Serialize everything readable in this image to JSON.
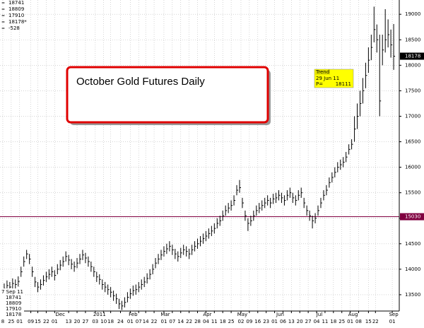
{
  "chart_data": {
    "type": "ohlc",
    "title": "October Gold Futures Daily",
    "header": {
      "open": 18741,
      "high": 18809,
      "low": 17910,
      "close": {
        "value": 18178,
        "label": "18178*"
      },
      "change": -528
    },
    "last_bar": {
      "date": "7 Sep 11",
      "open": 18741,
      "high": 18809,
      "low": 17910,
      "close": 18178
    },
    "trend": {
      "title": "Trend",
      "date": "29 Jun 11",
      "price_prefix": "P=",
      "price": 18111
    },
    "hline": 15030,
    "color": "#000000",
    "hline_color": "#800040",
    "grid": true,
    "ylim": [
      13180,
      19280
    ],
    "yticks": [
      13500,
      14000,
      14500,
      15000,
      15500,
      16000,
      16500,
      17000,
      17500,
      18000,
      18500,
      19000
    ],
    "xlim": [
      -1.5,
      141
    ],
    "xticks": [
      {
        "value": -0.5,
        "label": "8"
      },
      {
        "value": 2.5,
        "label": "25"
      },
      {
        "value": 5.5,
        "label": "01"
      },
      {
        "value": 9.5,
        "label": "09"
      },
      {
        "value": 12,
        "label": "15"
      },
      {
        "value": 15,
        "label": "22"
      },
      {
        "value": 18,
        "label": "01"
      },
      {
        "value": 23,
        "label": "13"
      },
      {
        "value": 26,
        "label": "20"
      },
      {
        "value": 29,
        "label": "27"
      },
      {
        "value": 32.5,
        "label": "03"
      },
      {
        "value": 35.5,
        "label": "10"
      },
      {
        "value": 38,
        "label": "18"
      },
      {
        "value": 41.5,
        "label": "24"
      },
      {
        "value": 45,
        "label": "01"
      },
      {
        "value": 48,
        "label": "07"
      },
      {
        "value": 50.5,
        "label": "14"
      },
      {
        "value": 53.5,
        "label": "22"
      },
      {
        "value": 57,
        "label": "01"
      },
      {
        "value": 60,
        "label": "07"
      },
      {
        "value": 63,
        "label": "14"
      },
      {
        "value": 66,
        "label": "22"
      },
      {
        "value": 69,
        "label": "28"
      },
      {
        "value": 72,
        "label": "04"
      },
      {
        "value": 75,
        "label": "11"
      },
      {
        "value": 78,
        "label": "18"
      },
      {
        "value": 81,
        "label": "25"
      },
      {
        "value": 84.5,
        "label": "02"
      },
      {
        "value": 87.5,
        "label": "09"
      },
      {
        "value": 90.5,
        "label": "16"
      },
      {
        "value": 93.5,
        "label": "23"
      },
      {
        "value": 96.5,
        "label": "01"
      },
      {
        "value": 99.5,
        "label": "06"
      },
      {
        "value": 102.5,
        "label": "13"
      },
      {
        "value": 105.5,
        "label": "20"
      },
      {
        "value": 108.5,
        "label": "27"
      },
      {
        "value": 111.5,
        "label": "04"
      },
      {
        "value": 114.5,
        "label": "11"
      },
      {
        "value": 117.5,
        "label": "18"
      },
      {
        "value": 120.5,
        "label": "25"
      },
      {
        "value": 123.5,
        "label": "01"
      },
      {
        "value": 126.5,
        "label": "08"
      },
      {
        "value": 130,
        "label": "15"
      },
      {
        "value": 132.5,
        "label": "22"
      },
      {
        "value": 138.5,
        "label": "01"
      }
    ],
    "month_ticks": [
      {
        "value": 20,
        "label": "Dec"
      },
      {
        "value": 34,
        "label": "2011"
      },
      {
        "value": 46,
        "label": "Feb"
      },
      {
        "value": 57.5,
        "label": "Mar"
      },
      {
        "value": 72.5,
        "label": "Apr"
      },
      {
        "value": 85,
        "label": "May"
      },
      {
        "value": 98.5,
        "label": "Jun"
      },
      {
        "value": 112.5,
        "label": "Jul"
      },
      {
        "value": 124.5,
        "label": "Aug"
      },
      {
        "value": 139,
        "label": "Sep"
      }
    ],
    "high": [
      13720,
      13780,
      13750,
      13820,
      13800,
      13860,
      14050,
      14250,
      14380,
      14300,
      14050,
      13850,
      13750,
      13800,
      13880,
      13950,
      14000,
      14050,
      13980,
      14100,
      14180,
      14250,
      14350,
      14280,
      14200,
      14150,
      14220,
      14300,
      14380,
      14320,
      14250,
      14150,
      14050,
      13950,
      13900,
      13800,
      13750,
      13700,
      13650,
      13580,
      13520,
      13420,
      13380,
      13450,
      13550,
      13620,
      13680,
      13700,
      13750,
      13800,
      13850,
      13920,
      14000,
      14100,
      14220,
      14300,
      14380,
      14450,
      14500,
      14550,
      14480,
      14400,
      14350,
      14420,
      14480,
      14450,
      14400,
      14480,
      14550,
      14600,
      14650,
      14700,
      14750,
      14800,
      14850,
      14900,
      15000,
      15050,
      15150,
      15250,
      15300,
      15350,
      15450,
      15650,
      15750,
      15400,
      15150,
      15000,
      15050,
      15150,
      15250,
      15300,
      15350,
      15400,
      15450,
      15400,
      15480,
      15500,
      15550,
      15500,
      15450,
      15550,
      15600,
      15500,
      15450,
      15550,
      15600,
      15400,
      15250,
      15150,
      15050,
      15100,
      15250,
      15400,
      15550,
      15650,
      15800,
      15900,
      16000,
      16100,
      16150,
      16200,
      16300,
      16450,
      16550,
      17000,
      17250,
      17500,
      17750,
      18050,
      18350,
      18600,
      19150,
      18800,
      18600,
      18600,
      19100,
      18900,
      18700,
      18809
    ],
    "low": [
      13520,
      13580,
      13550,
      13620,
      13600,
      13660,
      13850,
      14050,
      14200,
      14100,
      13850,
      13650,
      13550,
      13600,
      13680,
      13750,
      13800,
      13850,
      13780,
      13900,
      13980,
      14050,
      14150,
      14080,
      14000,
      13950,
      14020,
      14100,
      14180,
      14120,
      14050,
      13950,
      13850,
      13750,
      13700,
      13600,
      13550,
      13500,
      13450,
      13380,
      13320,
      13220,
      13200,
      13250,
      13350,
      13420,
      13480,
      13500,
      13550,
      13600,
      13650,
      13720,
      13800,
      13900,
      14020,
      14100,
      14180,
      14250,
      14300,
      14350,
      14280,
      14200,
      14150,
      14220,
      14280,
      14250,
      14200,
      14280,
      14350,
      14400,
      14450,
      14500,
      14550,
      14600,
      14650,
      14700,
      14800,
      14850,
      14950,
      15050,
      15100,
      15150,
      15250,
      15450,
      15500,
      15200,
      14950,
      14750,
      14850,
      14950,
      15050,
      15100,
      15150,
      15200,
      15250,
      15200,
      15280,
      15300,
      15350,
      15300,
      15250,
      15350,
      15400,
      15300,
      15250,
      15350,
      15400,
      15200,
      15050,
      14950,
      14800,
      14900,
      15050,
      15200,
      15350,
      15450,
      15600,
      15700,
      15800,
      15900,
      15950,
      16000,
      16100,
      16250,
      16350,
      16500,
      16750,
      17000,
      17250,
      17550,
      17850,
      18100,
      18450,
      18250,
      17000,
      18000,
      18250,
      18350,
      18150,
      17910
    ],
    "close": [
      13620,
      13680,
      13650,
      13720,
      13700,
      13760,
      13950,
      14150,
      14300,
      14200,
      13950,
      13750,
      13650,
      13700,
      13780,
      13850,
      13900,
      13950,
      13880,
      14000,
      14080,
      14150,
      14250,
      14180,
      14100,
      14050,
      14120,
      14200,
      14280,
      14220,
      14150,
      14050,
      13950,
      13850,
      13800,
      13700,
      13650,
      13600,
      13550,
      13480,
      13420,
      13320,
      13280,
      13350,
      13450,
      13520,
      13580,
      13600,
      13650,
      13700,
      13750,
      13820,
      13900,
      14000,
      14120,
      14200,
      14280,
      14350,
      14400,
      14450,
      14380,
      14300,
      14250,
      14320,
      14380,
      14350,
      14300,
      14380,
      14450,
      14500,
      14550,
      14600,
      14650,
      14700,
      14750,
      14800,
      14900,
      14950,
      15050,
      15150,
      15200,
      15250,
      15350,
      15550,
      15600,
      15300,
      15050,
      14900,
      14950,
      15050,
      15150,
      15200,
      15250,
      15300,
      15350,
      15300,
      15380,
      15400,
      15450,
      15400,
      15350,
      15450,
      15500,
      15400,
      15350,
      15450,
      15500,
      15300,
      15150,
      15050,
      14950,
      15000,
      15150,
      15300,
      15450,
      15550,
      15700,
      15800,
      15900,
      16000,
      16050,
      16100,
      16200,
      16350,
      16450,
      16750,
      17000,
      17250,
      17500,
      17800,
      18100,
      18350,
      18700,
      18500,
      17300,
      18300,
      18500,
      18600,
      18400,
      18178
    ]
  }
}
